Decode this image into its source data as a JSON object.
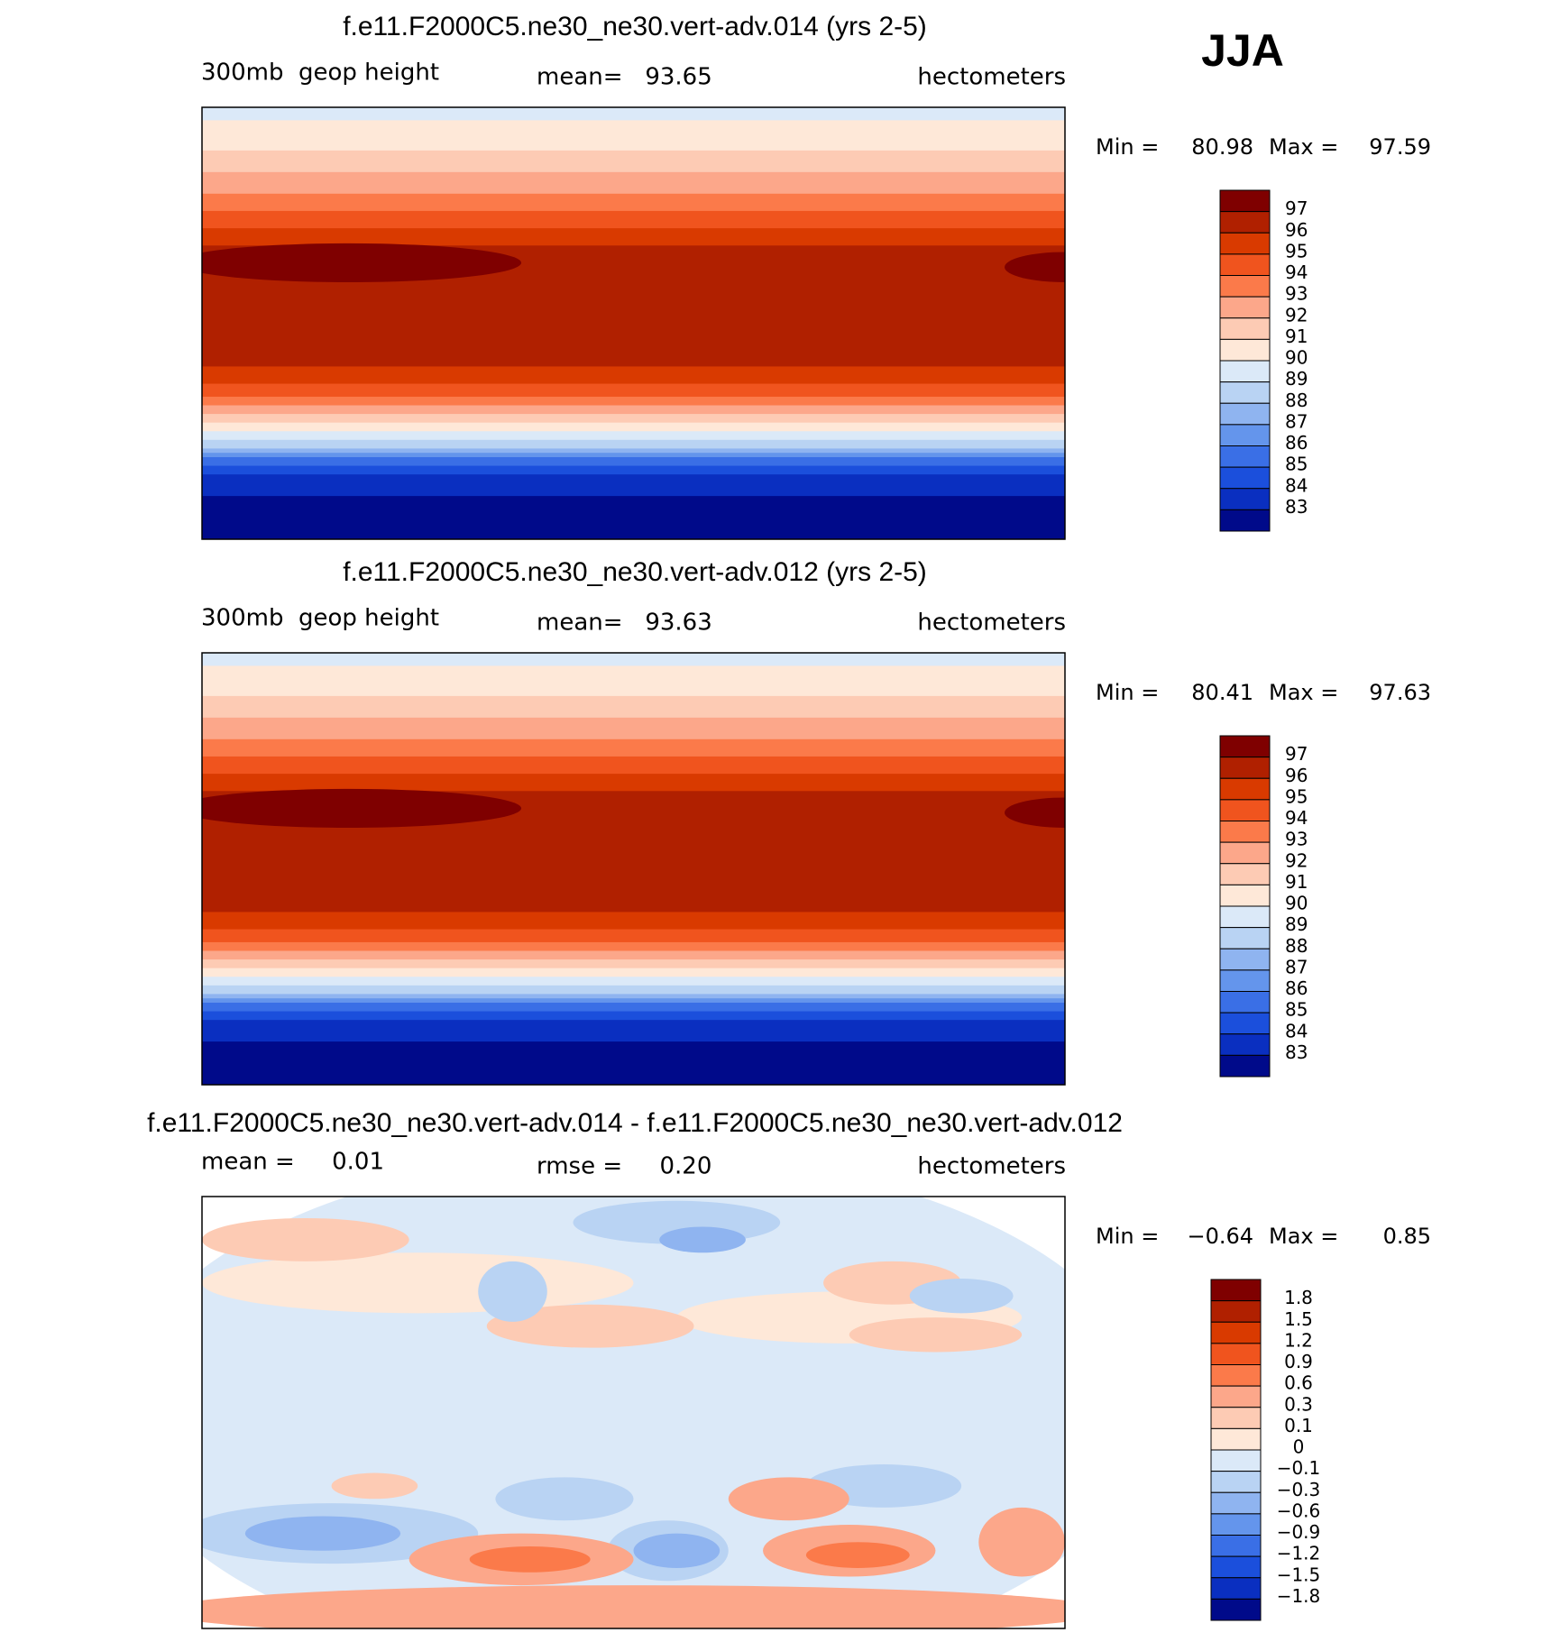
{
  "label": "JJA",
  "panels": [
    {
      "title": "f.e11.F2000C5.ne30_ne30.vert-adv.014 (yrs 2-5)",
      "left": "300mb  geop height",
      "center": "mean=   93.65",
      "right": "hectometers",
      "min_label": "Min =",
      "min": "80.98",
      "max_label": "Max =",
      "max": "97.59",
      "colorbar": {
        "labels": [
          "97",
          "96",
          "95",
          "94",
          "93",
          "92",
          "91",
          "90",
          "89",
          "88",
          "87",
          "86",
          "85",
          "84",
          "83"
        ],
        "colors": [
          "#7f0000",
          "#b02000",
          "#d93a00",
          "#f0541e",
          "#fb7a4a",
          "#fca78a",
          "#fdcbb4",
          "#fee8d8",
          "#dbe9f8",
          "#b9d3f3",
          "#8fb4f0",
          "#6495ec",
          "#3a6fe6",
          "#1b4fdc",
          "#0a2fc0",
          "#000a8a"
        ]
      }
    },
    {
      "title": "f.e11.F2000C5.ne30_ne30.vert-adv.012 (yrs 2-5)",
      "left": "300mb  geop height",
      "center": "mean=   93.63",
      "right": "hectometers",
      "min_label": "Min =",
      "min": "80.41",
      "max_label": "Max =",
      "max": "97.63",
      "colorbar": {
        "labels": [
          "97",
          "96",
          "95",
          "94",
          "93",
          "92",
          "91",
          "90",
          "89",
          "88",
          "87",
          "86",
          "85",
          "84",
          "83"
        ],
        "colors": [
          "#7f0000",
          "#b02000",
          "#d93a00",
          "#f0541e",
          "#fb7a4a",
          "#fca78a",
          "#fdcbb4",
          "#fee8d8",
          "#dbe9f8",
          "#b9d3f3",
          "#8fb4f0",
          "#6495ec",
          "#3a6fe6",
          "#1b4fdc",
          "#0a2fc0",
          "#000a8a"
        ]
      }
    },
    {
      "title": "f.e11.F2000C5.ne30_ne30.vert-adv.014 - f.e11.F2000C5.ne30_ne30.vert-adv.012",
      "left": "mean =     0.01",
      "center": "rmse =     0.20",
      "right": "hectometers",
      "min_label": "Min =",
      "min": "−0.64",
      "max_label": "Max =",
      "max": "0.85",
      "colorbar": {
        "labels": [
          "1.8",
          "1.5",
          "1.2",
          "0.9",
          "0.6",
          "0.3",
          "0.1",
          "0",
          "−0.1",
          "−0.3",
          "−0.6",
          "−0.9",
          "−1.2",
          "−1.5",
          "−1.8"
        ],
        "colors": [
          "#7f0000",
          "#b02000",
          "#d93a00",
          "#f0541e",
          "#fb7a4a",
          "#fca78a",
          "#fdcbb4",
          "#fee8d8",
          "#dbe9f8",
          "#b9d3f3",
          "#8fb4f0",
          "#6495ec",
          "#3a6fe6",
          "#1b4fdc",
          "#0a2fc0",
          "#000a8a"
        ]
      }
    }
  ]
}
